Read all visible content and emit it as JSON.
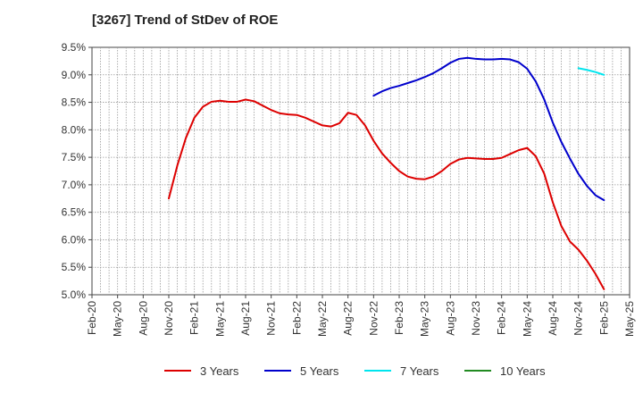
{
  "chart_data": {
    "type": "line",
    "title": "[3267]  Trend of StDev of ROE",
    "xlabel": "",
    "ylabel": "",
    "x_ticks": [
      "Feb-20",
      "May-20",
      "Aug-20",
      "Nov-20",
      "Feb-21",
      "May-21",
      "Aug-21",
      "Nov-21",
      "Feb-22",
      "May-22",
      "Aug-22",
      "Nov-22",
      "Feb-23",
      "May-23",
      "Aug-23",
      "Nov-23",
      "Feb-24",
      "May-24",
      "Aug-24",
      "Nov-24",
      "Feb-25",
      "May-25"
    ],
    "y_ticks": [
      "9.5%",
      "9.0%",
      "8.5%",
      "8.0%",
      "7.5%",
      "7.0%",
      "6.5%",
      "6.0%",
      "5.5%",
      "5.0%"
    ],
    "ylim": [
      5.0,
      9.5
    ],
    "grid": true,
    "legend_position": "bottom",
    "series": [
      {
        "name": "3 Years",
        "color": "#dd0000",
        "start": "Nov-20",
        "values": [
          6.75,
          7.35,
          7.85,
          8.22,
          8.42,
          8.51,
          8.53,
          8.51,
          8.51,
          8.55,
          8.52,
          8.44,
          8.36,
          8.3,
          8.28,
          8.27,
          8.22,
          8.15,
          8.08,
          8.06,
          8.12,
          8.31,
          8.27,
          8.08,
          7.8,
          7.57,
          7.4,
          7.25,
          7.15,
          7.11,
          7.1,
          7.15,
          7.25,
          7.38,
          7.46,
          7.49,
          7.48,
          7.47,
          7.47,
          7.49,
          7.56,
          7.63,
          7.67,
          7.52,
          7.2,
          6.68,
          6.25,
          5.97,
          5.82,
          5.62,
          5.38,
          5.1
        ]
      },
      {
        "name": "5 Years",
        "color": "#0000cc",
        "start": "Nov-22",
        "values": [
          8.62,
          8.7,
          8.76,
          8.8,
          8.85,
          8.9,
          8.96,
          9.03,
          9.12,
          9.22,
          9.29,
          9.31,
          9.29,
          9.28,
          9.28,
          9.29,
          9.28,
          9.23,
          9.11,
          8.88,
          8.55,
          8.13,
          7.78,
          7.48,
          7.2,
          6.98,
          6.81,
          6.72
        ]
      },
      {
        "name": "7 Years",
        "color": "#00e5ee",
        "start": "Nov-24",
        "values": [
          9.12,
          9.09,
          9.05,
          9.0
        ]
      },
      {
        "name": "10 Years",
        "color": "#228b22",
        "start": "Nov-24",
        "values": []
      }
    ]
  }
}
